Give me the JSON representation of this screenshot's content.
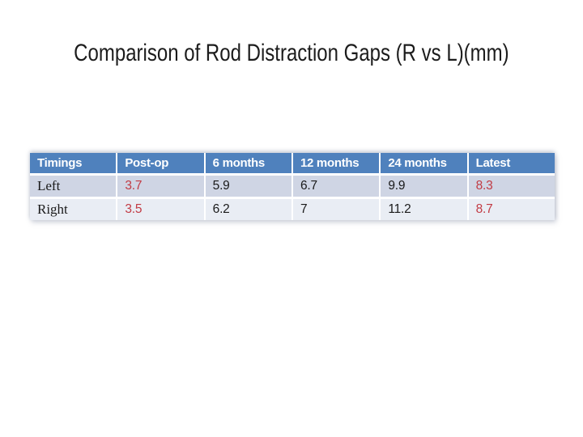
{
  "slide": {
    "title": "Comparison of Rod Distraction Gaps (R vs L)(mm)"
  },
  "table": {
    "columns": [
      "Timings",
      "Post-op",
      "6 months",
      "12 months",
      "24 months",
      "Latest"
    ],
    "rows": [
      {
        "label": "Left",
        "values": [
          "3.7",
          "5.9",
          "6.7",
          "9.9",
          "8.3"
        ]
      },
      {
        "label": "Right",
        "values": [
          "3.5",
          "6.2",
          "7",
          "11.2",
          "8.7"
        ]
      }
    ],
    "red_value_columns": [
      "Post-op",
      "Latest"
    ]
  },
  "colors": {
    "header_bg": "#4F81BD",
    "header_text": "#FFFFFF",
    "row_band_1": "#CFD5E4",
    "row_band_2": "#E9EDF4",
    "accent_red": "#C23B44",
    "body_text": "#1A1A1A",
    "title_text": "#1C1C1C"
  }
}
